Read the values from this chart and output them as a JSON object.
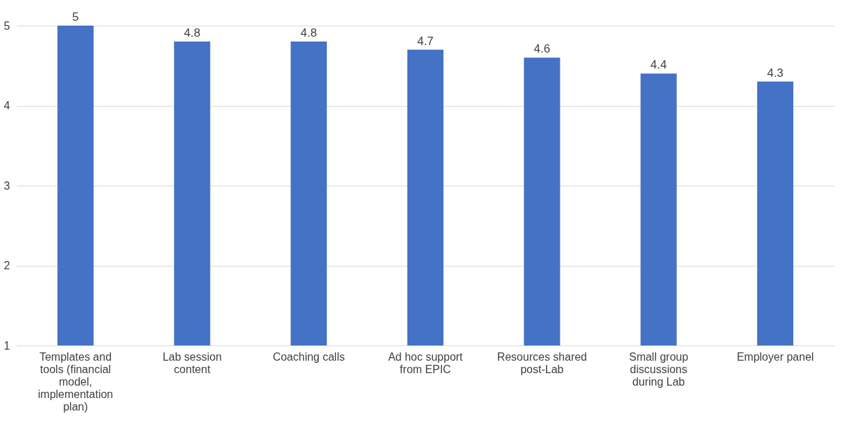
{
  "chart_data": {
    "type": "bar",
    "categories": [
      "Templates and tools (financial model, implementation plan)",
      "Lab session content",
      "Coaching calls",
      "Ad hoc support from EPIC",
      "Resources shared post-Lab",
      "Small group discussions during Lab",
      "Employer panel"
    ],
    "values": [
      5,
      4.8,
      4.8,
      4.7,
      4.6,
      4.4,
      4.3
    ],
    "color": "#4472c4",
    "ylim": [
      1,
      5
    ],
    "yticks": [
      1,
      2,
      3,
      4,
      5
    ],
    "grid": "y",
    "data_labels": true
  }
}
